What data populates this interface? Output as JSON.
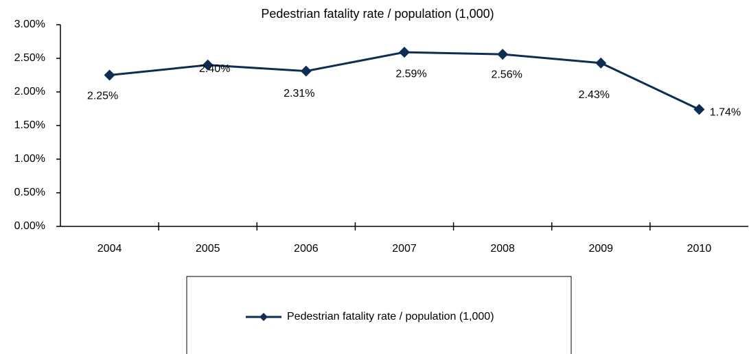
{
  "chart_data": {
    "type": "line",
    "title": "Pedestrian fatality rate / population (1,000)",
    "categories": [
      "2004",
      "2005",
      "2006",
      "2007",
      "2008",
      "2009",
      "2010"
    ],
    "series": [
      {
        "name": "Pedestrian fatality rate / population (1,000)",
        "color": "#0d2d52",
        "values": [
          2.25,
          2.4,
          2.31,
          2.59,
          2.56,
          2.43,
          1.74
        ],
        "value_labels": [
          "2.25%",
          "2.40%",
          "2.31%",
          "2.59%",
          "2.56%",
          "2.43%",
          "1.74%"
        ]
      }
    ],
    "ylim": [
      0,
      3
    ],
    "yticks": [
      {
        "value": 0,
        "label": "0.00%"
      },
      {
        "value": 0.5,
        "label": "0.50%"
      },
      {
        "value": 1,
        "label": "1.00%"
      },
      {
        "value": 1.5,
        "label": "1.50%"
      },
      {
        "value": 2,
        "label": "2.00%"
      },
      {
        "value": 2.5,
        "label": "2.50%"
      },
      {
        "value": 3,
        "label": "3.00%"
      }
    ],
    "legend": "bottom"
  }
}
